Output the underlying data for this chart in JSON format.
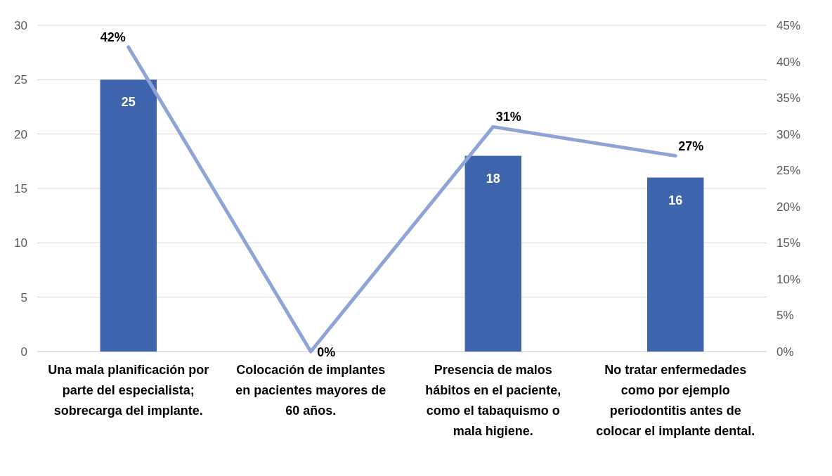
{
  "chart_data": {
    "type": "bar",
    "categories": [
      "Una mala planificación por parte del especialista; sobrecarga del implante.",
      "Colocación de implantes en pacientes mayores de 60 años.",
      "Presencia de malos hábitos en el paciente, como el tabaquismo o mala higiene.",
      "No tratar enfermedades como por ejemplo periodontitis antes de colocar el implante dental."
    ],
    "series": [
      {
        "color": "#3d64ad",
        "values": [
          25,
          0,
          18,
          16
        ],
        "value_labels": [
          "25",
          null,
          "18",
          "16"
        ]
      },
      {
        "type": "line",
        "axis": "y2",
        "color": "#8ea4d6",
        "values": [
          42,
          0,
          31,
          27
        ],
        "value_labels": [
          "42%",
          "0%",
          "31%",
          "27%"
        ]
      }
    ],
    "ylim": [
      0,
      30
    ],
    "yticks": [
      0,
      5,
      10,
      15,
      20,
      25,
      30
    ],
    "y2lim": [
      0,
      45
    ],
    "y2ticks": [
      {
        "value": 0,
        "label": "0%"
      },
      {
        "value": 5,
        "label": "5%"
      },
      {
        "value": 10,
        "label": "10%"
      },
      {
        "value": 15,
        "label": "15%"
      },
      {
        "value": 20,
        "label": "20%"
      },
      {
        "value": 25,
        "label": "25%"
      },
      {
        "value": 30,
        "label": "30%"
      },
      {
        "value": 35,
        "label": "35%"
      },
      {
        "value": 40,
        "label": "40%"
      },
      {
        "value": 45,
        "label": "45%"
      }
    ],
    "grid": "y",
    "marker": "none"
  }
}
